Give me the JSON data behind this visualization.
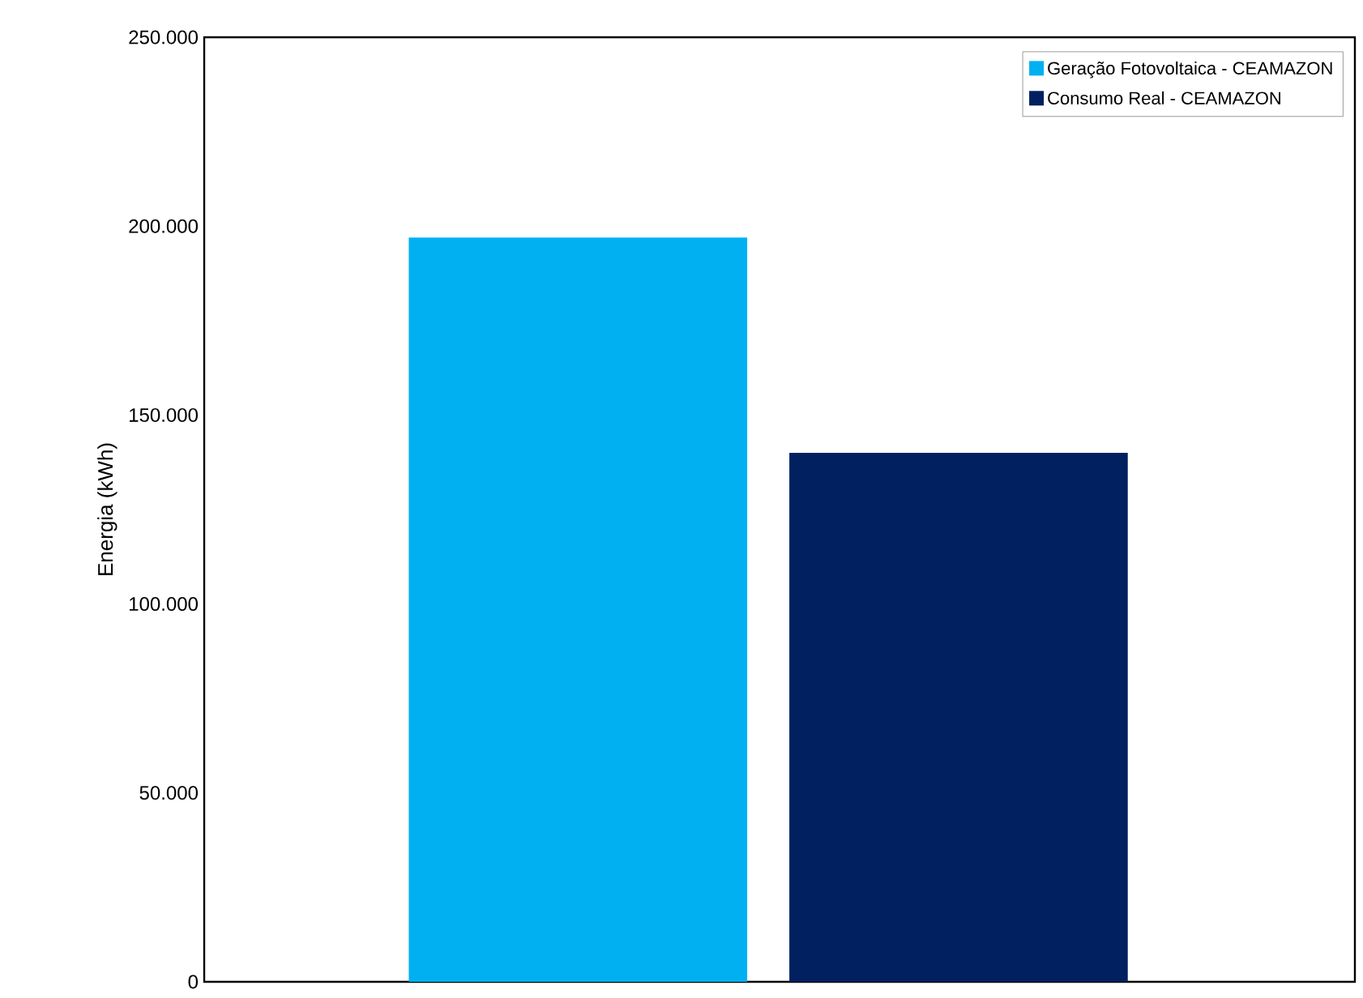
{
  "chart_data": {
    "type": "bar",
    "ylabel": "Energia (kWh)",
    "categories": [
      null
    ],
    "series": [
      {
        "name": "Geração Fotovoltaica -  CEAMAZON",
        "color": "#00b0f0",
        "values": [
          197000
        ]
      },
      {
        "name": "Consumo Real - CEAMAZON",
        "color": "#002060",
        "values": [
          140000
        ]
      }
    ],
    "ylim": [
      0,
      250000
    ],
    "yticks": [
      {
        "value": 0,
        "label": "0"
      },
      {
        "value": 50000,
        "label": "50.000"
      },
      {
        "value": 100000,
        "label": "100.000"
      },
      {
        "value": 150000,
        "label": "150.000"
      },
      {
        "value": 200000,
        "label": "200.000"
      },
      {
        "value": 250000,
        "label": "250.000"
      }
    ],
    "legend": "top right",
    "grid": false
  }
}
